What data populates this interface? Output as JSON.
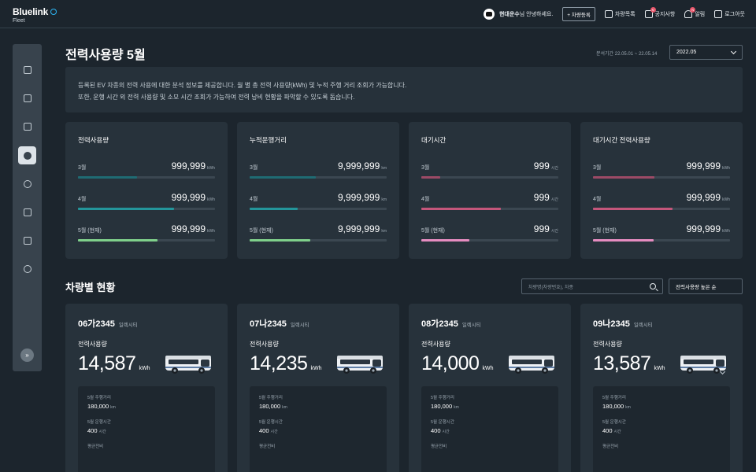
{
  "header": {
    "brand": "Bluelink",
    "brand_sub": "Fleet",
    "company": "현대운수",
    "greeting_suffix": "님 안녕하세요.",
    "register_label": "+ 차량등록",
    "menu": [
      {
        "label": "차량목록",
        "icon": "clipboard-icon",
        "badge": ""
      },
      {
        "label": "공지사항",
        "icon": "megaphone-icon",
        "badge": "N"
      },
      {
        "label": "알림",
        "icon": "bell-icon",
        "badge": "N"
      },
      {
        "label": "로그아웃",
        "icon": "logout-icon",
        "badge": ""
      }
    ]
  },
  "sidebar": {
    "items": [
      {
        "icon": "dashboard-grid-icon",
        "active": false
      },
      {
        "icon": "bus-icon",
        "active": false
      },
      {
        "icon": "bar-chart-icon",
        "active": false
      },
      {
        "icon": "leaf-energy-icon",
        "active": true
      },
      {
        "icon": "location-pin-icon",
        "active": false
      },
      {
        "icon": "document-icon",
        "active": false
      },
      {
        "icon": "download-icon",
        "active": false
      },
      {
        "icon": "target-icon",
        "active": false
      }
    ],
    "expand_icon": "»"
  },
  "page": {
    "title": "전력사용량 5월",
    "period": "분석기간 22.05.01 ~ 22.05.14",
    "month_value": "2022.05",
    "info_line1": "등록된 EV 차종의 전력 사용에 대한 분석 정보를 제공합니다. 월 별 총 전력 사용량(kWh) 및 누적 주행 거리 조회가 가능합니다.",
    "info_line2": "또한, 운행 시간 외 전력 사용량 및 소모 시간 조회가 가능하여 전력 낭비 현황을 파악할 수 있도록 돕습니다."
  },
  "summary": [
    {
      "title": "전력사용량",
      "rows": [
        {
          "label": "3월",
          "value": "999,999",
          "unit": "kWh",
          "fill": 0.43,
          "color": "#1f6b73"
        },
        {
          "label": "4월",
          "value": "999,999",
          "unit": "kWh",
          "fill": 0.7,
          "color": "#23959a"
        },
        {
          "label": "5월 (현재)",
          "value": "999,999",
          "unit": "kWh",
          "fill": 0.58,
          "color": "#7fd08b"
        }
      ]
    },
    {
      "title": "누적운행거리",
      "rows": [
        {
          "label": "3월",
          "value": "9,999,999",
          "unit": "km",
          "fill": 0.48,
          "color": "#1f6b73"
        },
        {
          "label": "4월",
          "value": "9,999,999",
          "unit": "km",
          "fill": 0.35,
          "color": "#23959a"
        },
        {
          "label": "5월 (현재)",
          "value": "9,999,999",
          "unit": "km",
          "fill": 0.44,
          "color": "#7fd08b"
        }
      ]
    },
    {
      "title": "대기시간",
      "rows": [
        {
          "label": "3월",
          "value": "999",
          "unit": "시간",
          "fill": 0.14,
          "color": "#9c4a66"
        },
        {
          "label": "4월",
          "value": "999",
          "unit": "시간",
          "fill": 0.58,
          "color": "#c4567b"
        },
        {
          "label": "5월 (현재)",
          "value": "999",
          "unit": "시간",
          "fill": 0.35,
          "color": "#e58cc0"
        }
      ]
    },
    {
      "title": "대기시간 전력사용량",
      "rows": [
        {
          "label": "3월",
          "value": "999,999",
          "unit": "kWh",
          "fill": 0.45,
          "color": "#9c4a66"
        },
        {
          "label": "4월",
          "value": "999,999",
          "unit": "kWh",
          "fill": 0.58,
          "color": "#c4567b"
        },
        {
          "label": "5월 (현재)",
          "value": "999,999",
          "unit": "kWh",
          "fill": 0.44,
          "color": "#e58cc0"
        }
      ]
    }
  ],
  "vehicles_section": {
    "title": "차량별 현황",
    "search_placeholder": "차량명(차량번호), 차종",
    "sort_label": "전력사용량 높은 순"
  },
  "vehicles": [
    {
      "plate": "06가2345",
      "model": "일렉시티",
      "power_label": "전력사용량",
      "power": "14,587",
      "unit": "kWh",
      "dist_label": "5월 주행거리",
      "dist": "180,000",
      "dist_unit": "km",
      "time_label": "5월 운행시간",
      "time": "400",
      "time_unit": "시간",
      "eff_label": "평균전비"
    },
    {
      "plate": "07나2345",
      "model": "일렉시티",
      "power_label": "전력사용량",
      "power": "14,235",
      "unit": "kWh",
      "dist_label": "5월 주행거리",
      "dist": "180,000",
      "dist_unit": "km",
      "time_label": "5월 운행시간",
      "time": "400",
      "time_unit": "시간",
      "eff_label": "평균전비"
    },
    {
      "plate": "08가2345",
      "model": "일렉시티",
      "power_label": "전력사용량",
      "power": "14,000",
      "unit": "kWh",
      "dist_label": "5월 주행거리",
      "dist": "180,000",
      "dist_unit": "km",
      "time_label": "5월 운행시간",
      "time": "400",
      "time_unit": "시간",
      "eff_label": "평균전비"
    },
    {
      "plate": "09나2345",
      "model": "일렉시티",
      "power_label": "전력사용량",
      "power": "13,587",
      "unit": "kWh",
      "dist_label": "5월 주행거리",
      "dist": "180,000",
      "dist_unit": "km",
      "time_label": "5월 운행시간",
      "time": "400",
      "time_unit": "시간",
      "eff_label": "평균전비"
    }
  ]
}
